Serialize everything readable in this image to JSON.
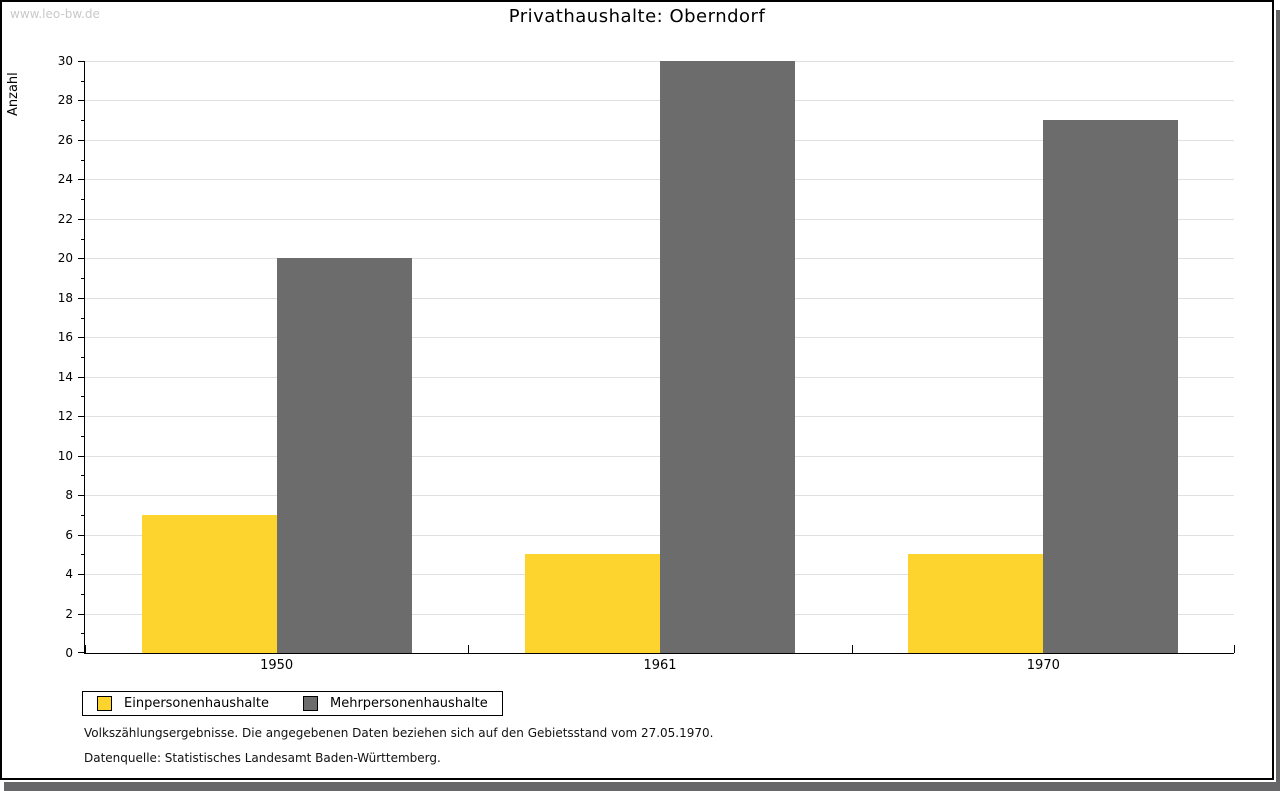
{
  "page": {
    "watermark": "www.leo-bw.de"
  },
  "chart_data": {
    "type": "bar",
    "title": "Privathaushalte: Oberndorf",
    "ylabel": "Anzahl",
    "xlabel": "",
    "categories": [
      "1950",
      "1961",
      "1970"
    ],
    "series": [
      {
        "name": "Einpersonenhaushalte",
        "color": "#fcd42d",
        "values": [
          7,
          5,
          5
        ]
      },
      {
        "name": "Mehrpersonenhaushalte",
        "color": "#6c6c6c",
        "values": [
          20,
          30,
          27
        ]
      }
    ],
    "ylim": [
      0,
      30
    ],
    "ytick_step": 2,
    "minor_tick_step": 1,
    "grid": true,
    "legend_position": "bottom-left"
  },
  "footer": {
    "note": "Volkszählungsergebnisse. Die angegebenen Daten beziehen sich auf den Gebietsstand vom 27.05.1970.",
    "source": "Datenquelle: Statistisches Landesamt Baden-Württemberg."
  }
}
